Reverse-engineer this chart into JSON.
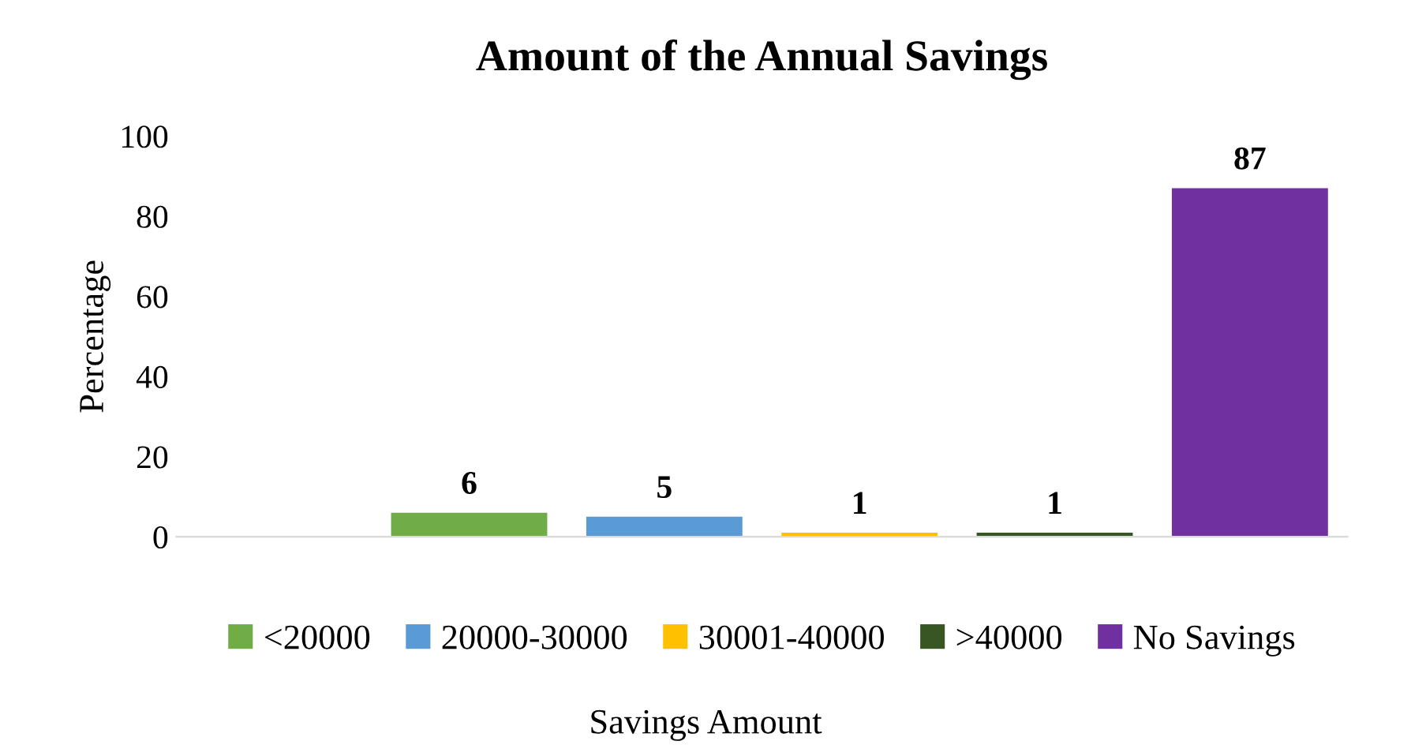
{
  "chart_data": {
    "type": "bar",
    "title": "Amount of the Annual Savings",
    "xlabel": "Savings Amount",
    "ylabel": "Percentage",
    "categories": [
      null,
      null,
      null,
      null,
      null,
      null
    ],
    "series": [
      {
        "name": "<20000",
        "color": "#70ad47",
        "values": [
          null,
          6,
          null,
          null,
          null,
          null
        ]
      },
      {
        "name": "20000-30000",
        "color": "#5b9bd5",
        "values": [
          null,
          null,
          5,
          null,
          null,
          null
        ]
      },
      {
        "name": "30001-40000",
        "color": "#ffc000",
        "values": [
          null,
          null,
          null,
          1,
          null,
          null
        ]
      },
      {
        "name": ">40000",
        "color": "#375623",
        "values": [
          null,
          null,
          null,
          null,
          1,
          null
        ]
      },
      {
        "name": "No Savings",
        "color": "#7030a0",
        "values": [
          null,
          null,
          null,
          null,
          null,
          87
        ]
      }
    ],
    "ylim": [
      0,
      100
    ],
    "yticks": [
      0,
      20,
      40,
      60,
      80,
      100
    ],
    "grid": false,
    "legend": "bottom",
    "data_labels": true
  }
}
